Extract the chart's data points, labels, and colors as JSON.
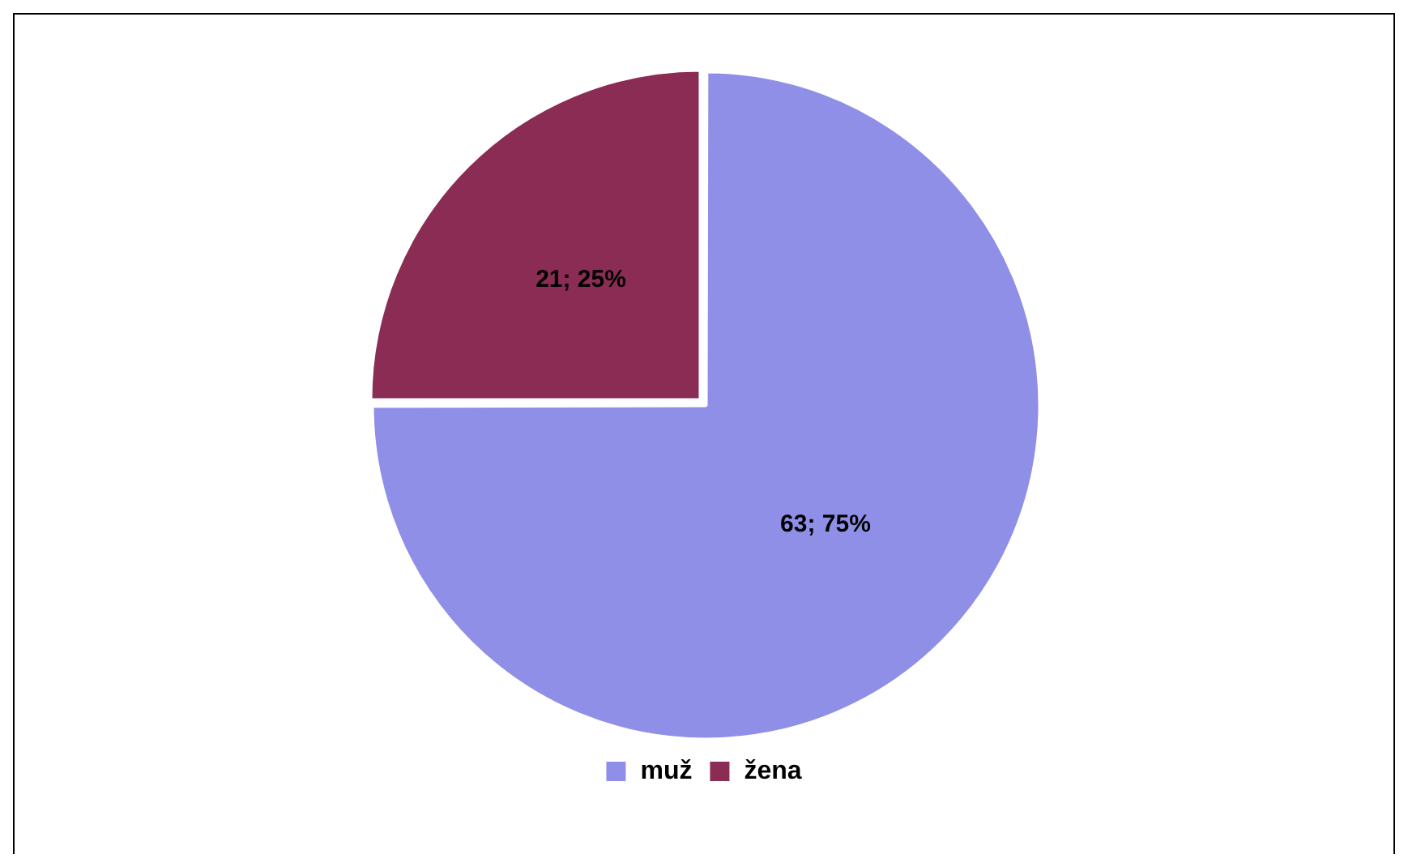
{
  "chart_data": {
    "type": "pie",
    "categories": [
      "muž",
      "žena"
    ],
    "values": [
      63,
      21
    ],
    "colors": [
      "#8f8fe8",
      "#8b2c55"
    ],
    "value_labels": [
      "63; 75%",
      "21; 25%"
    ],
    "legend": "bottom"
  }
}
